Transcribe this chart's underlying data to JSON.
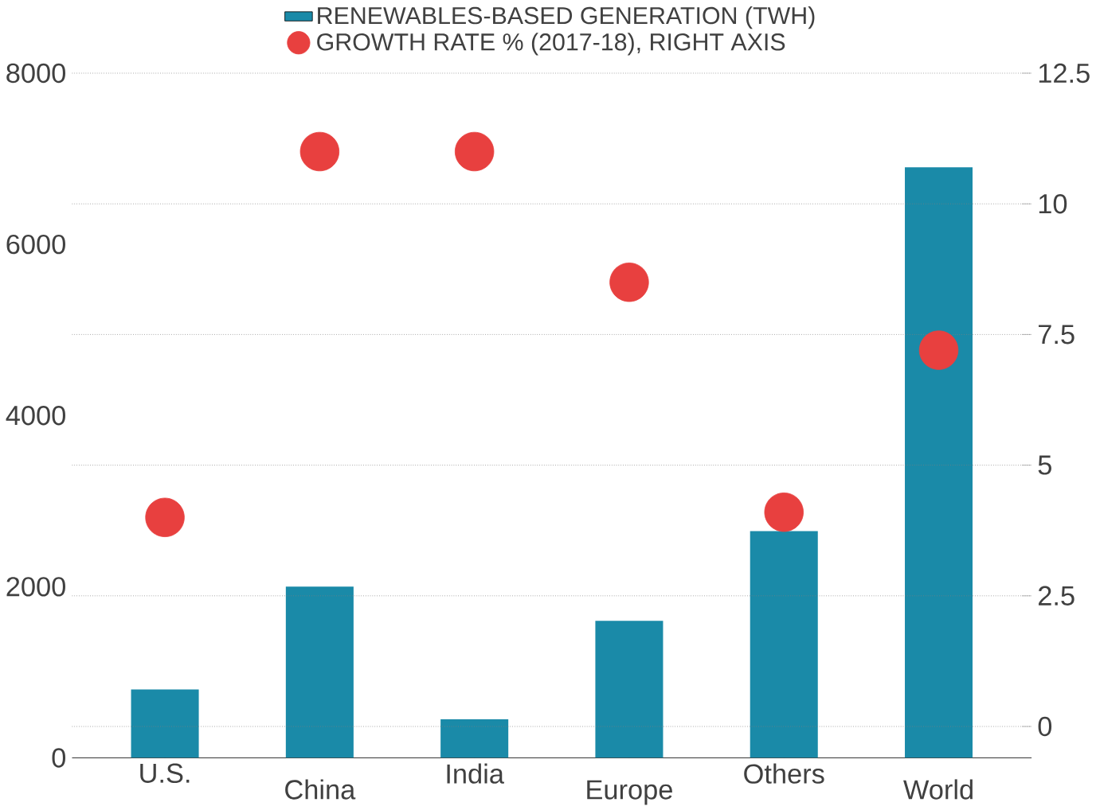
{
  "chart_data": {
    "type": "bar",
    "categories": [
      "U.S.",
      "China",
      "India",
      "Europe",
      "Others",
      "World"
    ],
    "series": [
      {
        "name": "RENEWABLES-BASED GENERATION (TWH)",
        "color": "#1a8aa8",
        "values": [
          800,
          2000,
          450,
          1600,
          2650,
          6900
        ]
      },
      {
        "name": "GROWTH RATE % (2017-18), RIGHT AXIS",
        "color": "#e8403f",
        "type": "scatter",
        "axis": "y2",
        "values": [
          4.0,
          11.0,
          11.0,
          8.5,
          4.1,
          7.2
        ]
      }
    ],
    "ylim": [
      0,
      8000
    ],
    "yticks": [
      0,
      2000,
      4000,
      6000,
      8000
    ],
    "y2lim": [
      -0.6,
      12.5
    ],
    "y2ticks": [
      0,
      2.5,
      5,
      7.5,
      10,
      12.5
    ],
    "grid": "y2",
    "legend": "top"
  }
}
